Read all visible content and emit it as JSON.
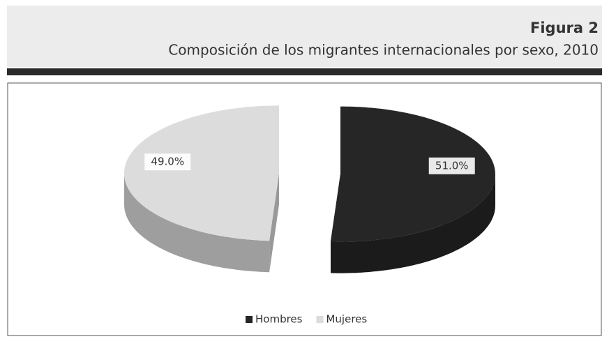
{
  "chart_data": {
    "type": "pie",
    "title": "Figura 2",
    "subtitle": "Composición de los migrantes internacionales por sexo, 2010",
    "categories": [
      "Hombres",
      "Mujeres"
    ],
    "values": [
      51.0,
      49.0
    ],
    "value_labels": [
      "51.0%",
      "49.0%"
    ],
    "colors": [
      "#262626",
      "#dcdcdc"
    ],
    "legend": "bottom"
  }
}
